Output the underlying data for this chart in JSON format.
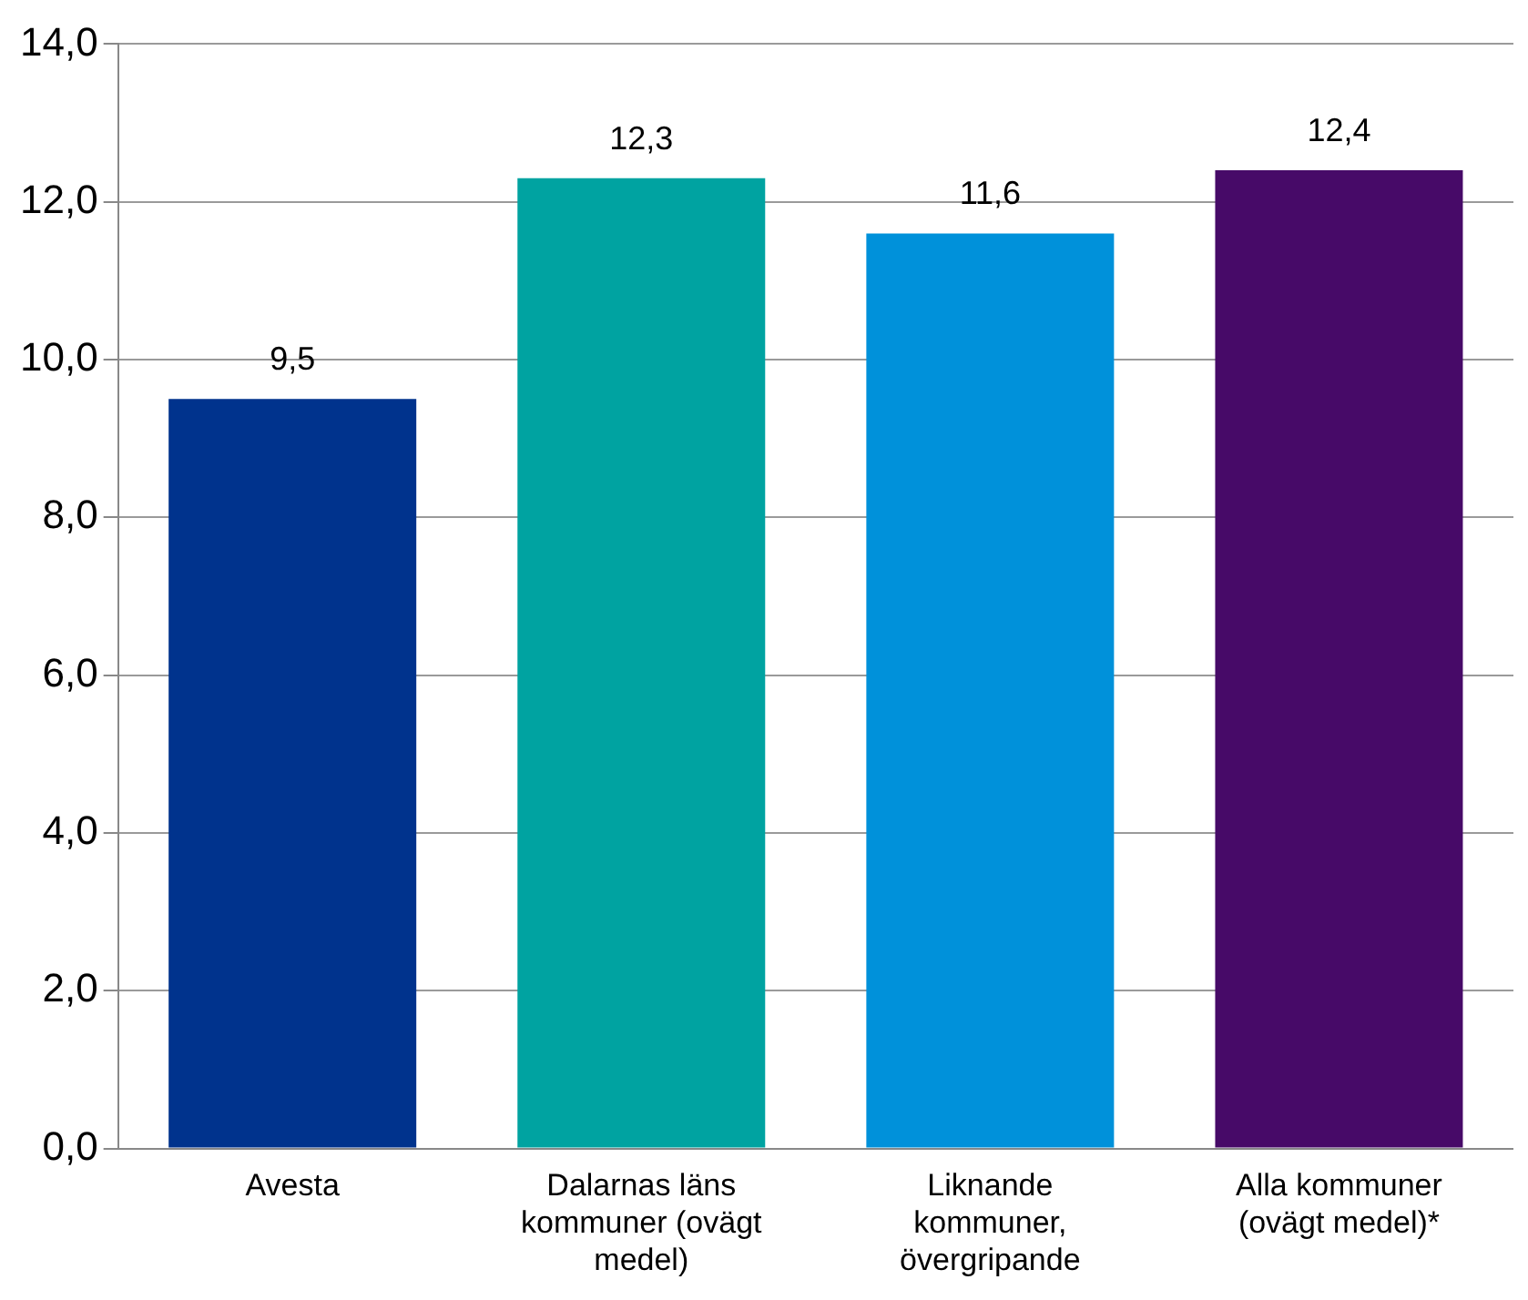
{
  "chart_data": {
    "type": "bar",
    "categories": [
      "Avesta",
      "Dalarnas läns kommuner (ovägt medel)",
      "Liknande kommuner, övergripande",
      "Alla kommuner (ovägt medel)*"
    ],
    "values": [
      9.5,
      12.3,
      11.6,
      12.4
    ],
    "colors": [
      "#00338d",
      "#00a3a1",
      "#0091da",
      "#470a68"
    ],
    "value_labels": [
      "9,5",
      "12,3",
      "11,6",
      "12,4"
    ],
    "ylim": [
      0,
      14
    ],
    "yticks": [
      {
        "value": 0,
        "label": "0,0"
      },
      {
        "value": 2,
        "label": "2,0"
      },
      {
        "value": 4,
        "label": "4,0"
      },
      {
        "value": 6,
        "label": "6,0"
      },
      {
        "value": 8,
        "label": "8,0"
      },
      {
        "value": 10,
        "label": "10,0"
      },
      {
        "value": 12,
        "label": "12,0"
      },
      {
        "value": 14,
        "label": "14,0"
      }
    ],
    "grid": "y",
    "legend": false
  }
}
